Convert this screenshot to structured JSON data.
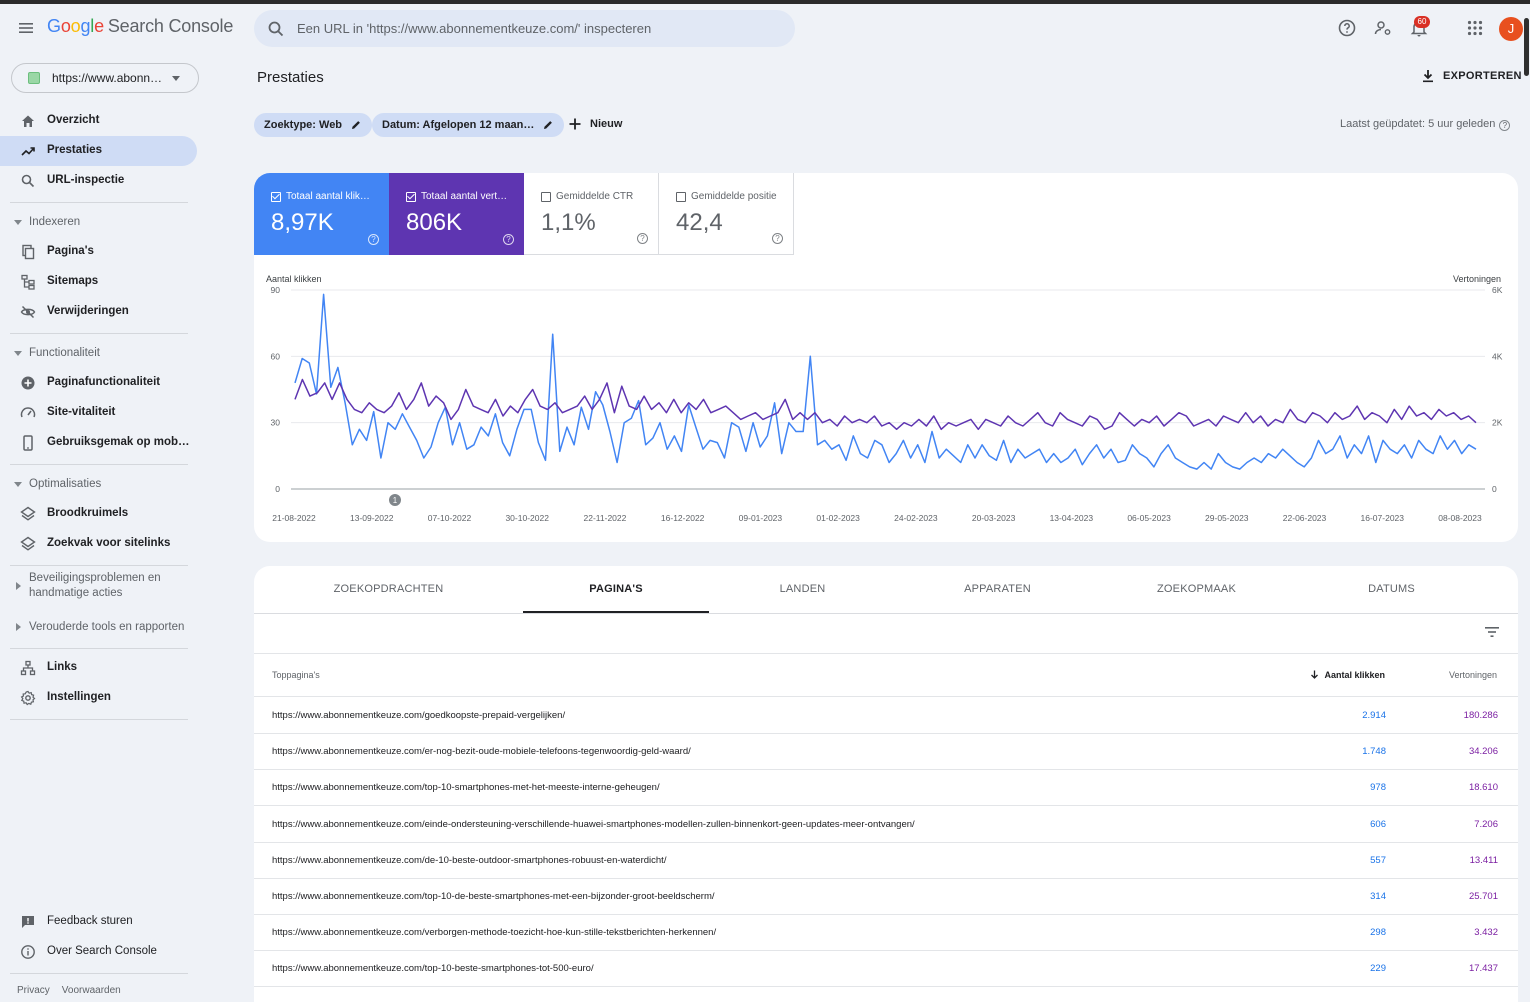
{
  "app": {
    "logo_letters": [
      "G",
      "o",
      "o",
      "g",
      "l",
      "e"
    ],
    "product": "Search Console",
    "search_placeholder": "Een URL in 'https://www.abonnementkeuze.com/' inspecteren",
    "notification_count": "60",
    "avatar_initial": "J"
  },
  "sidebar": {
    "property": "https://www.abonn…",
    "items_top": [
      {
        "label": "Overzicht",
        "icon": "home-icon"
      },
      {
        "label": "Prestaties",
        "icon": "trending-up-icon",
        "active": true
      },
      {
        "label": "URL-inspectie",
        "icon": "search-icon"
      }
    ],
    "sections": [
      {
        "label": "Indexeren",
        "items": [
          "Pagina's",
          "Sitemaps",
          "Verwijderingen"
        ]
      },
      {
        "label": "Functionaliteit",
        "items": [
          "Paginafunctionaliteit",
          "Site-vitaliteit",
          "Gebruiksgemak op mob…"
        ]
      },
      {
        "label": "Optimalisaties",
        "items": [
          "Broodkruimels",
          "Zoekvak voor sitelinks"
        ]
      }
    ],
    "collapsed_sections": [
      "Beveiligingsproblemen en handmatige acties",
      "Verouderde tools en rapporten"
    ],
    "items_bottom": [
      "Links",
      "Instellingen"
    ],
    "footer_items": [
      "Feedback sturen",
      "Over Search Console"
    ],
    "footer_links": [
      "Privacy",
      "Voorwaarden"
    ]
  },
  "main": {
    "title": "Prestaties",
    "export_label": "EXPORTEREN",
    "filters": [
      "Zoektype: Web",
      "Datum: Afgelopen 12 maan…"
    ],
    "new_label": "Nieuw",
    "last_updated": "Laatst geüpdatet: 5 uur geleden",
    "metrics": [
      {
        "label": "Totaal aantal klik…",
        "value": "8,97K",
        "checked": true,
        "color": "#4285f4"
      },
      {
        "label": "Totaal aantal vert…",
        "value": "806K",
        "checked": true,
        "color": "#5e35b1"
      },
      {
        "label": "Gemiddelde CTR",
        "value": "1,1%",
        "checked": false
      },
      {
        "label": "Gemiddelde positie",
        "value": "42,4",
        "checked": false
      }
    ]
  },
  "chart_data": {
    "type": "line",
    "ylabel": "Aantal klikken",
    "y2label": "Vertoningen",
    "yticks": [
      "90",
      "60",
      "30",
      "0"
    ],
    "y2ticks": [
      "6K",
      "4K",
      "2K",
      "0"
    ],
    "ylim": [
      0,
      90
    ],
    "y2lim": [
      0,
      6000
    ],
    "annotation": "1",
    "xticks": [
      "21-08-2022",
      "13-09-2022",
      "07-10-2022",
      "30-10-2022",
      "22-11-2022",
      "16-12-2022",
      "09-01-2023",
      "01-02-2023",
      "24-02-2023",
      "20-03-2023",
      "13-04-2023",
      "06-05-2023",
      "29-05-2023",
      "22-06-2023",
      "16-07-2023",
      "08-08-2023"
    ],
    "series": [
      {
        "name": "Totaal aantal klikken",
        "color": "#4285f4",
        "axis": "left",
        "values": [
          48,
          59,
          57,
          43,
          88,
          46,
          55,
          39,
          20,
          27,
          22,
          35,
          14,
          30,
          27,
          34,
          28,
          22,
          14,
          19,
          30,
          37,
          20,
          30,
          18,
          20,
          28,
          24,
          34,
          21,
          15,
          27,
          36,
          36,
          21,
          13,
          70,
          17,
          28,
          20,
          37,
          27,
          44,
          38,
          26,
          12,
          30,
          32,
          40,
          20,
          23,
          30,
          18,
          24,
          17,
          38,
          28,
          18,
          22,
          21,
          14,
          30,
          28,
          17,
          30,
          19,
          24,
          39,
          16,
          30,
          26,
          26,
          60,
          20,
          22,
          18,
          20,
          13,
          24,
          16,
          14,
          22,
          20,
          12,
          16,
          22,
          14,
          20,
          12,
          26,
          14,
          18,
          15,
          12,
          20,
          14,
          20,
          15,
          13,
          22,
          12,
          18,
          14,
          16,
          18,
          12,
          16,
          12,
          14,
          18,
          11,
          16,
          20,
          14,
          18,
          12,
          13,
          20,
          16,
          14,
          10,
          16,
          20,
          14,
          12,
          10,
          9,
          12,
          9,
          16,
          12,
          10,
          9,
          12,
          14,
          12,
          16,
          14,
          18,
          15,
          12,
          10,
          14,
          22,
          16,
          18,
          24,
          14,
          20,
          16,
          24,
          12,
          22,
          18,
          16,
          20,
          14,
          22,
          18,
          16,
          24,
          18,
          22,
          16,
          20,
          18
        ]
      },
      {
        "name": "Vertoningen",
        "color": "#5e35b1",
        "axis": "right",
        "values": [
          2700,
          3300,
          2800,
          2900,
          3200,
          2700,
          3200,
          2700,
          2400,
          2300,
          2600,
          2400,
          2300,
          2500,
          2900,
          2400,
          2700,
          3200,
          2500,
          2800,
          2600,
          2100,
          2400,
          3000,
          2500,
          2400,
          2300,
          2700,
          2200,
          2500,
          2300,
          2700,
          3000,
          2500,
          2400,
          2600,
          2300,
          2400,
          2500,
          2800,
          2400,
          2700,
          3200,
          2300,
          3100,
          2500,
          2400,
          2800,
          2400,
          2600,
          2300,
          2700,
          2300,
          2600,
          2400,
          2700,
          2300,
          2400,
          2500,
          2300,
          2100,
          2200,
          2300,
          2100,
          2200,
          2300,
          2700,
          2100,
          2300,
          2100,
          2300,
          2000,
          2100,
          1900,
          2200,
          2000,
          2100,
          2000,
          2200,
          1900,
          2000,
          1800,
          2000,
          1900,
          2100,
          1900,
          2200,
          1800,
          2000,
          1900,
          2000,
          2100,
          1800,
          2100,
          2000,
          1900,
          2200,
          2000,
          1900,
          2100,
          2300,
          2000,
          1900,
          2300,
          2100,
          2000,
          1900,
          2200,
          2100,
          1800,
          1900,
          2300,
          2100,
          1900,
          2100,
          2000,
          2200,
          1900,
          2100,
          2300,
          2200,
          1900,
          2000,
          2100,
          1900,
          2200,
          2100,
          2000,
          2300,
          2000,
          2200,
          1900,
          2100,
          2000,
          2400,
          2100,
          2000,
          2300,
          2200,
          2000,
          2300,
          2100,
          2200,
          2500,
          2100,
          2300,
          2200,
          2000,
          2400,
          2100,
          2500,
          2200,
          2300,
          2100,
          2400,
          2200,
          2300,
          2100,
          2200,
          2000
        ]
      }
    ]
  },
  "table": {
    "tabs": [
      "ZOEKOPDRACHTEN",
      "PAGINA'S",
      "LANDEN",
      "APPARATEN",
      "ZOEKOPMAAK",
      "DATUMS"
    ],
    "active_tab": 1,
    "columns": [
      "Toppagina's",
      "Aantal klikken",
      "Vertoningen"
    ],
    "rows": [
      {
        "url": "https://www.abonnementkeuze.com/goedkoopste-prepaid-vergelijken/",
        "clicks": "2.914",
        "impressions": "180.286"
      },
      {
        "url": "https://www.abonnementkeuze.com/er-nog-bezit-oude-mobiele-telefoons-tegenwoordig-geld-waard/",
        "clicks": "1.748",
        "impressions": "34.206"
      },
      {
        "url": "https://www.abonnementkeuze.com/top-10-smartphones-met-het-meeste-interne-geheugen/",
        "clicks": "978",
        "impressions": "18.610"
      },
      {
        "url": "https://www.abonnementkeuze.com/einde-ondersteuning-verschillende-huawei-smartphones-modellen-zullen-binnenkort-geen-updates-meer-ontvangen/",
        "clicks": "606",
        "impressions": "7.206"
      },
      {
        "url": "https://www.abonnementkeuze.com/de-10-beste-outdoor-smartphones-robuust-en-waterdicht/",
        "clicks": "557",
        "impressions": "13.411"
      },
      {
        "url": "https://www.abonnementkeuze.com/top-10-de-beste-smartphones-met-een-bijzonder-groot-beeldscherm/",
        "clicks": "314",
        "impressions": "25.701"
      },
      {
        "url": "https://www.abonnementkeuze.com/verborgen-methode-toezicht-hoe-kun-stille-tekstberichten-herkennen/",
        "clicks": "298",
        "impressions": "3.432"
      },
      {
        "url": "https://www.abonnementkeuze.com/top-10-beste-smartphones-tot-500-euro/",
        "clicks": "229",
        "impressions": "17.437"
      }
    ]
  }
}
